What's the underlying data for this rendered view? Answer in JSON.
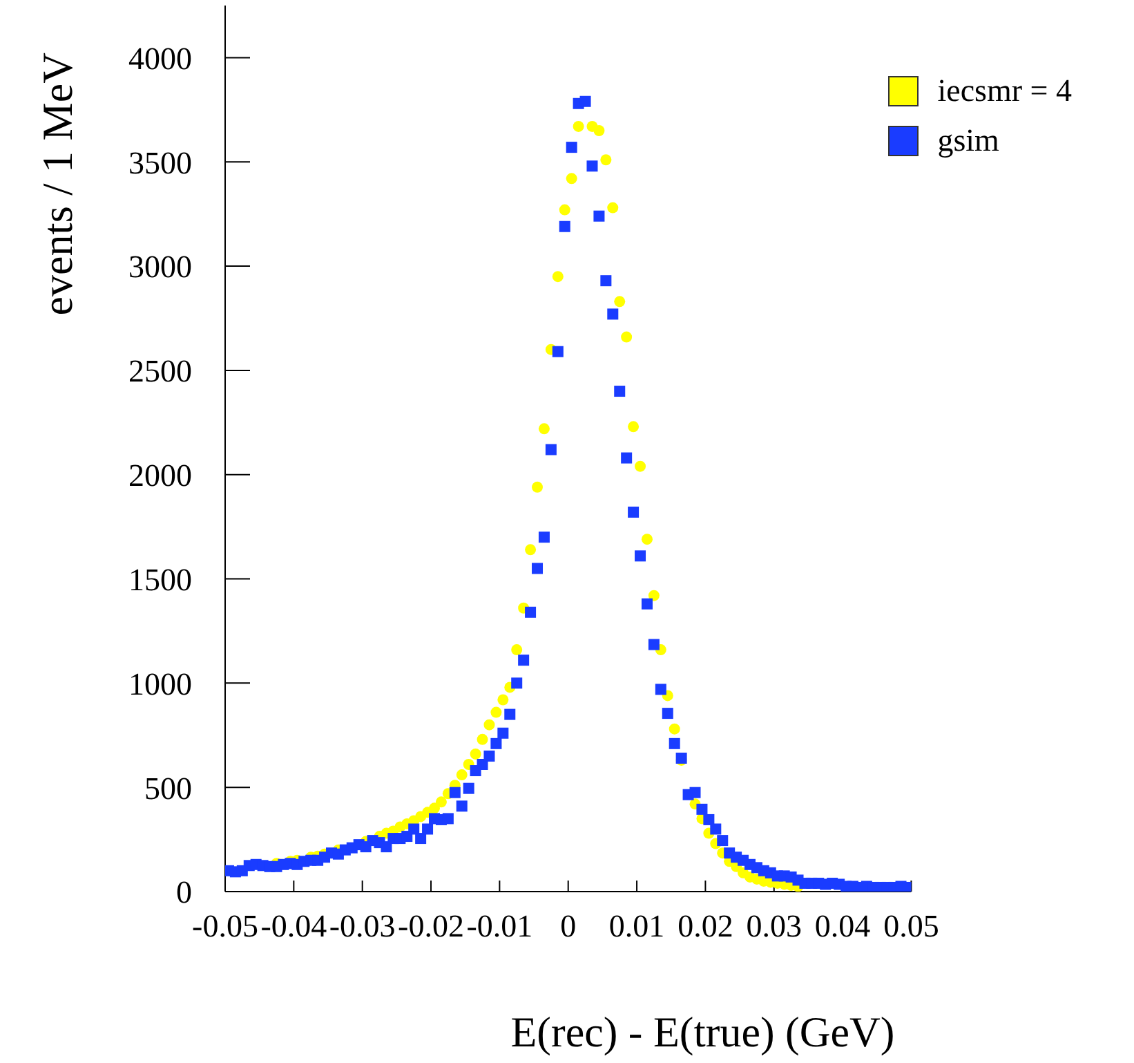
{
  "chart_data": {
    "type": "scatter",
    "xlabel": "E(rec) - E(true) (GeV)",
    "ylabel": "events / 1 MeV",
    "x": [
      -0.0495,
      -0.0485,
      -0.0475,
      -0.0465,
      -0.0455,
      -0.0445,
      -0.0435,
      -0.0425,
      -0.0415,
      -0.0405,
      -0.0395,
      -0.0385,
      -0.0375,
      -0.0365,
      -0.0355,
      -0.0345,
      -0.0335,
      -0.0325,
      -0.0315,
      -0.0305,
      -0.0295,
      -0.0285,
      -0.0275,
      -0.0265,
      -0.0255,
      -0.0245,
      -0.0235,
      -0.0225,
      -0.0215,
      -0.0205,
      -0.0195,
      -0.0185,
      -0.0175,
      -0.0165,
      -0.0155,
      -0.0145,
      -0.0135,
      -0.0125,
      -0.0115,
      -0.0105,
      -0.0095,
      -0.0085,
      -0.0075,
      -0.0065,
      -0.0055,
      -0.0045,
      -0.0035,
      -0.0025,
      -0.0015,
      -0.0005,
      0.0005,
      0.0015,
      0.0025,
      0.0035,
      0.0045,
      0.0055,
      0.0065,
      0.0075,
      0.0085,
      0.0095,
      0.0105,
      0.0115,
      0.0125,
      0.0135,
      0.0145,
      0.0155,
      0.0165,
      0.0175,
      0.0185,
      0.0195,
      0.0205,
      0.0215,
      0.0225,
      0.0235,
      0.0245,
      0.0255,
      0.0265,
      0.0275,
      0.0285,
      0.0295,
      0.0305,
      0.0315,
      0.0325,
      0.0335,
      0.0345,
      0.0355,
      0.0365,
      0.0375,
      0.0385,
      0.0395,
      0.0405,
      0.0415,
      0.0425,
      0.0435,
      0.0445,
      0.0455,
      0.0465,
      0.0475,
      0.0485,
      0.0495
    ],
    "series": [
      {
        "name": "iecsmr = 4",
        "color": "#ffff00",
        "marker": "circle",
        "values": [
          null,
          null,
          null,
          null,
          null,
          null,
          null,
          135,
          null,
          145,
          150,
          null,
          165,
          170,
          180,
          null,
          200,
          null,
          null,
          null,
          240,
          null,
          265,
          280,
          290,
          310,
          325,
          340,
          360,
          380,
          400,
          430,
          470,
          510,
          560,
          610,
          660,
          730,
          800,
          860,
          920,
          980,
          1160,
          1360,
          1640,
          1940,
          2220,
          2600,
          2950,
          3270,
          3420,
          3670,
          null,
          3670,
          3650,
          3510,
          3280,
          2830,
          2660,
          2230,
          2040,
          1690,
          1420,
          1160,
          940,
          780,
          630,
          null,
          420,
          350,
          280,
          230,
          185,
          145,
          120,
          90,
          70,
          60,
          50,
          45,
          40,
          35,
          30,
          25,
          null,
          null,
          null,
          null,
          null,
          null,
          null,
          null,
          null,
          null,
          null,
          null,
          null,
          null,
          null,
          null
        ]
      },
      {
        "name": "gsim",
        "color": "#1a3cff",
        "marker": "square",
        "values": [
          100,
          95,
          100,
          125,
          130,
          125,
          120,
          120,
          130,
          135,
          130,
          145,
          150,
          150,
          165,
          185,
          180,
          200,
          210,
          225,
          215,
          245,
          235,
          215,
          255,
          255,
          265,
          300,
          255,
          300,
          350,
          345,
          350,
          475,
          410,
          495,
          580,
          610,
          650,
          710,
          760,
          850,
          1000,
          1110,
          1340,
          1550,
          1700,
          2120,
          2590,
          3190,
          3570,
          3780,
          3790,
          3480,
          3240,
          2930,
          2770,
          2400,
          2080,
          1820,
          1610,
          1380,
          1185,
          970,
          855,
          710,
          640,
          465,
          475,
          395,
          345,
          300,
          245,
          185,
          165,
          150,
          130,
          115,
          100,
          90,
          75,
          75,
          70,
          55,
          40,
          40,
          40,
          35,
          40,
          35,
          25,
          25,
          20,
          25,
          20,
          20,
          20,
          20,
          25,
          20
        ]
      }
    ],
    "xlim": [
      -0.05,
      0.05
    ],
    "xticks": [
      -0.05,
      -0.04,
      -0.03,
      -0.02,
      -0.01,
      0,
      0.01,
      0.02,
      0.03,
      0.04,
      0.05
    ],
    "ylim": [
      0,
      4250
    ],
    "yticks": [
      0,
      500,
      1000,
      1500,
      2000,
      2500,
      3000,
      3500,
      4000
    ],
    "grid": false,
    "legend": "top right"
  }
}
